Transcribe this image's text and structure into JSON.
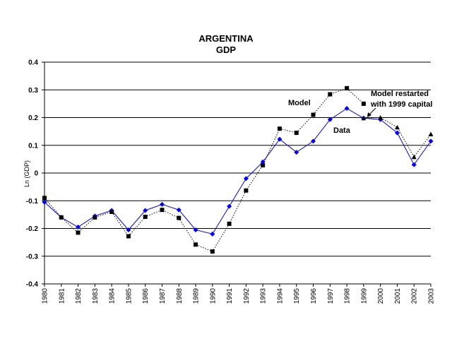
{
  "chart_data": {
    "type": "line",
    "title": "ARGENTINA",
    "subtitle": "GDP",
    "xlabel": "",
    "ylabel": "Ln (GDP)",
    "ylim": [
      -0.4,
      0.4
    ],
    "yticks": [
      "0.4",
      "0.3",
      "0.2",
      "0.1",
      "0",
      "-0.1",
      "-0.2",
      "-0.3",
      "-0.4"
    ],
    "grid": true,
    "categories": [
      "1980",
      "1981",
      "1982",
      "1983",
      "1984",
      "1985",
      "1986",
      "1987",
      "1988",
      "1989",
      "1990",
      "1991",
      "1992",
      "1993",
      "1994",
      "1995",
      "1996",
      "1997",
      "1998",
      "1999",
      "2000",
      "2001",
      "2002",
      "2003"
    ],
    "series": [
      {
        "name": "Data",
        "color": "#0000ff",
        "marker": "diamond",
        "style": "solid",
        "values": [
          -0.105,
          -0.16,
          -0.195,
          -0.155,
          -0.135,
          -0.205,
          -0.135,
          -0.113,
          -0.133,
          -0.205,
          -0.22,
          -0.12,
          -0.02,
          0.04,
          0.122,
          0.075,
          0.115,
          0.193,
          0.233,
          0.198,
          0.193,
          0.145,
          0.03,
          0.115
        ]
      },
      {
        "name": "Model",
        "color": "#000000",
        "marker": "square",
        "style": "dotted",
        "x": [
          "1980",
          "1981",
          "1982",
          "1983",
          "1984",
          "1985",
          "1986",
          "1987",
          "1988",
          "1989",
          "1990",
          "1991",
          "1992",
          "1993",
          "1994",
          "1995",
          "1996",
          "1997",
          "1998",
          "1999"
        ],
        "values": [
          -0.09,
          -0.16,
          -0.215,
          -0.16,
          -0.14,
          -0.228,
          -0.158,
          -0.133,
          -0.162,
          -0.258,
          -0.283,
          -0.183,
          -0.063,
          0.028,
          0.16,
          0.145,
          0.21,
          0.284,
          0.306,
          0.25
        ]
      },
      {
        "name": "Model restarted with 1999 capital",
        "color": "#000000",
        "marker": "triangle",
        "style": "dotted",
        "x": [
          "1999",
          "2000",
          "2001",
          "2002",
          "2003"
        ],
        "values": [
          0.198,
          0.2,
          0.165,
          0.058,
          0.14
        ]
      }
    ],
    "annotations": {
      "model": "Model",
      "data": "Data",
      "restart_line1": "Model restarted",
      "restart_line2": "with 1999 capital"
    }
  }
}
